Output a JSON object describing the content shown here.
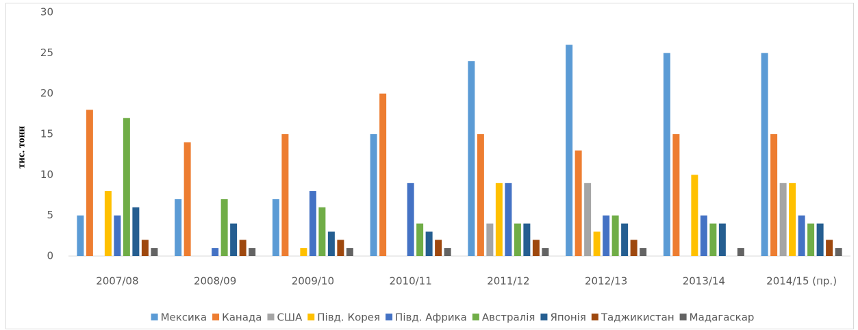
{
  "chart_data": {
    "type": "bar",
    "y_label": "тис. тонн",
    "categories": [
      "2007/08",
      "2008/09",
      "2009/10",
      "2010/11",
      "2011/12",
      "2012/13",
      "2013/14",
      "2014/15 (пр.)"
    ],
    "series": [
      {
        "name": "Мексика",
        "color": "#5b9bd5",
        "values": [
          5,
          7,
          7,
          15,
          24,
          26,
          25,
          25
        ]
      },
      {
        "name": "Канада",
        "color": "#ed7d31",
        "values": [
          18,
          14,
          15,
          20,
          15,
          13,
          15,
          15
        ]
      },
      {
        "name": "США",
        "color": "#a5a5a5",
        "values": [
          0,
          0,
          0,
          0,
          4,
          9,
          0,
          9
        ]
      },
      {
        "name": "Півд. Корея",
        "color": "#ffc000",
        "values": [
          8,
          0,
          1,
          0,
          9,
          3,
          10,
          9
        ]
      },
      {
        "name": "Півд. Африка",
        "color": "#4472c4",
        "values": [
          5,
          1,
          8,
          9,
          9,
          5,
          5,
          5
        ]
      },
      {
        "name": "Австралія",
        "color": "#70ad47",
        "values": [
          17,
          7,
          6,
          4,
          4,
          5,
          4,
          4
        ]
      },
      {
        "name": "Японія",
        "color": "#255e91",
        "values": [
          6,
          4,
          3,
          3,
          4,
          4,
          4,
          4
        ]
      },
      {
        "name": "Таджикистан",
        "color": "#9e480e",
        "values": [
          2,
          2,
          2,
          2,
          2,
          2,
          0,
          2
        ]
      },
      {
        "name": "Мадагаскар",
        "color": "#636363",
        "values": [
          1,
          1,
          1,
          1,
          1,
          1,
          1,
          1
        ]
      }
    ],
    "ylim": [
      0,
      30
    ],
    "yticks": [
      0,
      5,
      10,
      15,
      20,
      25,
      30
    ],
    "grid": false,
    "legend": "bottom"
  }
}
